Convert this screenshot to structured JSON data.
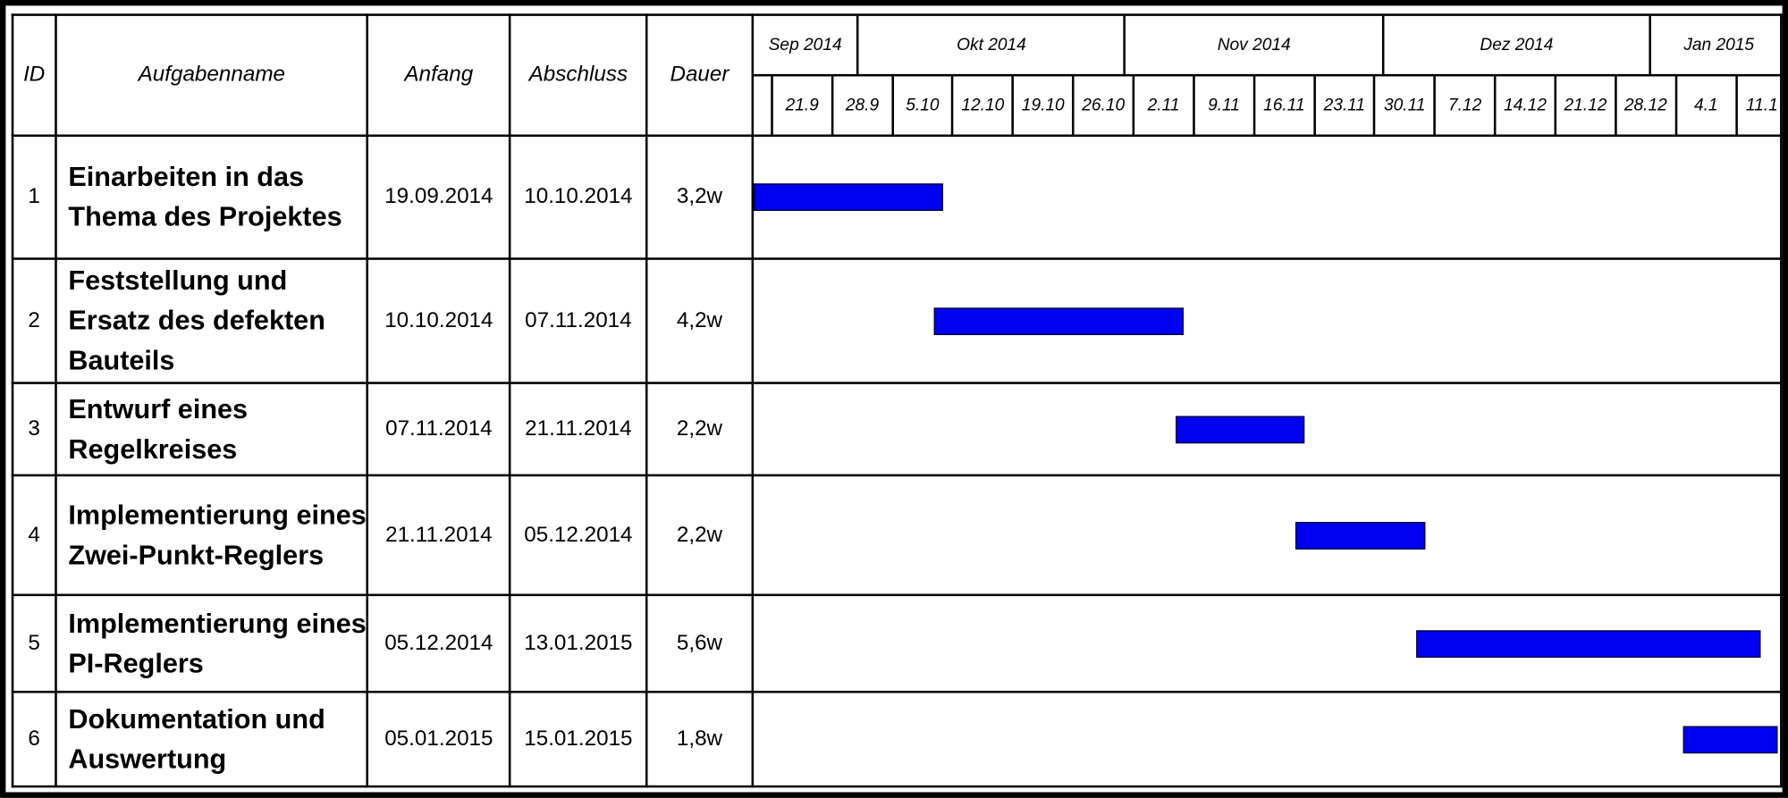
{
  "headers": {
    "id": "ID",
    "name": "Aufgabenname",
    "start": "Anfang",
    "end": "Abschluss",
    "duration": "Dauer"
  },
  "chart_data": {
    "type": "gantt",
    "x_range": [
      "2014-09-19",
      "2015-01-17"
    ],
    "bar_color": "#0000f0",
    "months": [
      {
        "label": "Sep 2014",
        "start": "2014-09-19",
        "end": "2014-10-01"
      },
      {
        "label": "Okt 2014",
        "start": "2014-10-01",
        "end": "2014-11-01"
      },
      {
        "label": "Nov 2014",
        "start": "2014-11-01",
        "end": "2014-12-01"
      },
      {
        "label": "Dez 2014",
        "start": "2014-12-01",
        "end": "2015-01-01"
      },
      {
        "label": "Jan 2015",
        "start": "2015-01-01",
        "end": "2015-01-17"
      }
    ],
    "weeks": [
      {
        "label": "",
        "start": "2014-09-19"
      },
      {
        "label": "21.9",
        "start": "2014-09-21"
      },
      {
        "label": "28.9",
        "start": "2014-09-28"
      },
      {
        "label": "5.10",
        "start": "2014-10-05"
      },
      {
        "label": "12.10",
        "start": "2014-10-12"
      },
      {
        "label": "19.10",
        "start": "2014-10-19"
      },
      {
        "label": "26.10",
        "start": "2014-10-26"
      },
      {
        "label": "2.11",
        "start": "2014-11-02"
      },
      {
        "label": "9.11",
        "start": "2014-11-09"
      },
      {
        "label": "16.11",
        "start": "2014-11-16"
      },
      {
        "label": "23.11",
        "start": "2014-11-23"
      },
      {
        "label": "30.11",
        "start": "2014-11-30"
      },
      {
        "label": "7.12",
        "start": "2014-12-07"
      },
      {
        "label": "14.12",
        "start": "2014-12-14"
      },
      {
        "label": "21.12",
        "start": "2014-12-21"
      },
      {
        "label": "28.12",
        "start": "2014-12-28"
      },
      {
        "label": "4.1",
        "start": "2015-01-04"
      },
      {
        "label": "11.1",
        "start": "2015-01-11"
      }
    ],
    "tasks": [
      {
        "id": "1",
        "name": "Einarbeiten in das Thema des Projektes",
        "start": "19.09.2014",
        "end": "10.10.2014",
        "duration": "3,2w",
        "bar_start": "2014-09-19",
        "bar_end": "2014-10-10"
      },
      {
        "id": "2",
        "name": "Feststellung und Ersatz des defekten Bauteils",
        "start": "10.10.2014",
        "end": "07.11.2014",
        "duration": "4,2w",
        "bar_start": "2014-10-10",
        "bar_end": "2014-11-07"
      },
      {
        "id": "3",
        "name": "Entwurf eines Regelkreises",
        "start": "07.11.2014",
        "end": "21.11.2014",
        "duration": "2,2w",
        "bar_start": "2014-11-07",
        "bar_end": "2014-11-21"
      },
      {
        "id": "4",
        "name": "Implementierung eines Zwei-Punkt-Reglers",
        "start": "21.11.2014",
        "end": "05.12.2014",
        "duration": "2,2w",
        "bar_start": "2014-11-21",
        "bar_end": "2014-12-05"
      },
      {
        "id": "5",
        "name": "Implementierung eines PI-Reglers",
        "start": "05.12.2014",
        "end": "13.01.2015",
        "duration": "5,6w",
        "bar_start": "2014-12-05",
        "bar_end": "2015-01-13"
      },
      {
        "id": "6",
        "name": "Dokumentation und Auswertung",
        "start": "05.01.2015",
        "end": "15.01.2015",
        "duration": "1,8w",
        "bar_start": "2015-01-05",
        "bar_end": "2015-01-15"
      }
    ]
  }
}
